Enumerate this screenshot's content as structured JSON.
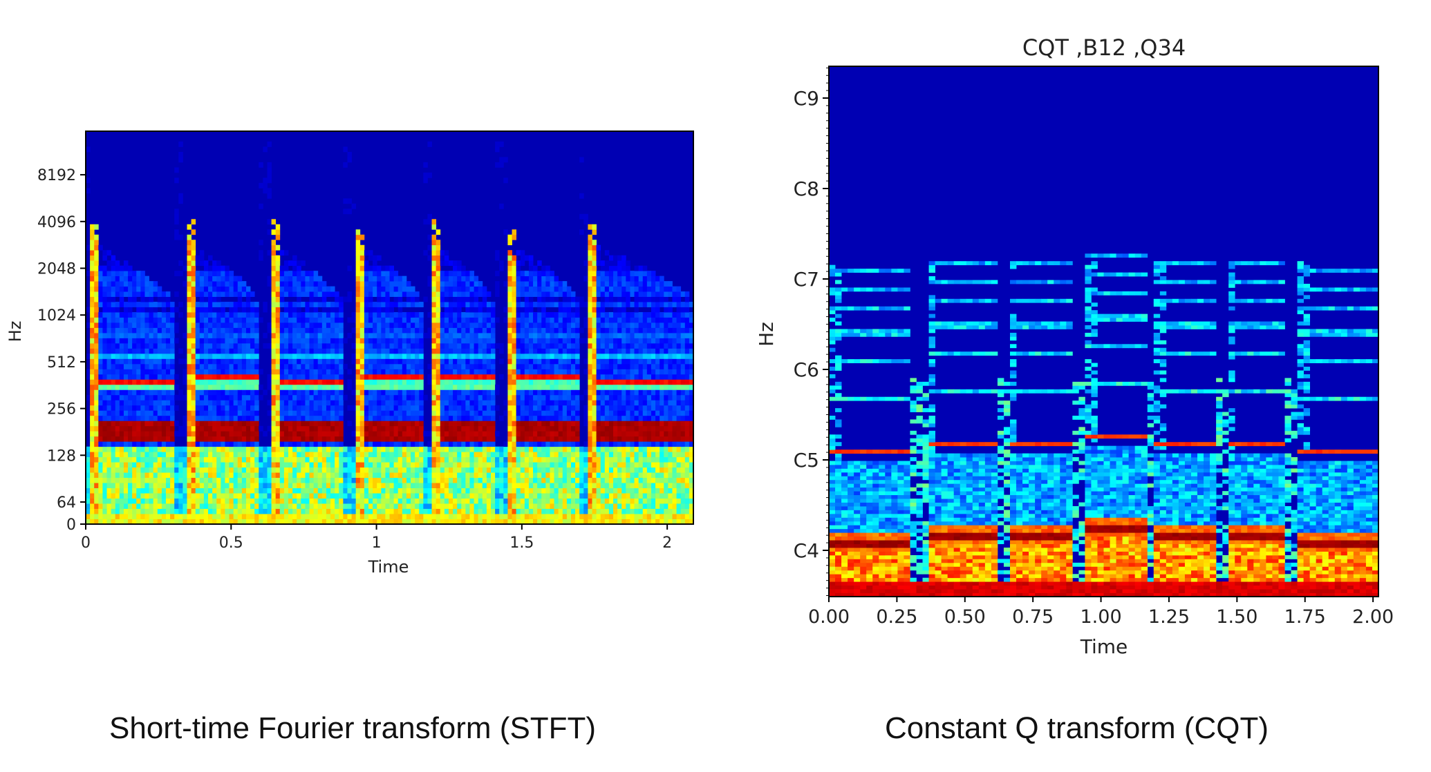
{
  "colors": {
    "colormap": "jet",
    "background": "#ffffff",
    "axis": "#000000"
  },
  "captions": {
    "stft": "Short-time Fourier transform (STFT)",
    "cqt": "Constant Q transform (CQT)"
  },
  "chart_data": [
    {
      "type": "heatmap",
      "title": "",
      "xlabel": "Time",
      "ylabel": "Hz",
      "xlim": [
        0,
        2.09
      ],
      "x_ticks": [
        0,
        0.5,
        1,
        1.5,
        2
      ],
      "x_tick_labels": [
        "0",
        "0.5",
        "1",
        "1.5",
        "2"
      ],
      "y_scale": "symlog",
      "y_ticks": [
        0,
        64,
        128,
        256,
        512,
        1024,
        2048,
        4096,
        8192
      ],
      "y_tick_labels": [
        "0",
        "64",
        "128",
        "256",
        "512",
        "1024",
        "2048",
        "4096",
        "8192"
      ],
      "grid": false,
      "legend": "none",
      "note_onsets": [
        0.02,
        0.35,
        0.64,
        0.93,
        1.19,
        1.45,
        1.73
      ],
      "note_offsets": [
        0.3,
        0.6,
        0.88,
        1.16,
        1.41,
        1.7,
        2.09
      ],
      "fundamental_hz": [
        185,
        185,
        185,
        185,
        185,
        185,
        185
      ],
      "harmonic_hz": [
        370,
        400,
        390,
        420,
        400,
        400,
        370
      ]
    },
    {
      "type": "heatmap",
      "title": "CQT ,B12 ,Q34",
      "xlabel": "Time",
      "ylabel": "Hz",
      "xlim": [
        0,
        2.02
      ],
      "x_ticks": [
        0,
        0.25,
        0.5,
        0.75,
        1.0,
        1.25,
        1.5,
        1.75,
        2.0
      ],
      "x_tick_labels": [
        "0.00",
        "0.25",
        "0.50",
        "0.75",
        "1.00",
        "1.25",
        "1.50",
        "1.75",
        "2.00"
      ],
      "y_scale": "log (note)",
      "y_ticks": [
        "C4",
        "C5",
        "C6",
        "C7",
        "C8",
        "C9"
      ],
      "y_tick_labels": [
        "C4",
        "C5",
        "C6",
        "C7",
        "C8",
        "C9"
      ],
      "grid": false,
      "legend": "none",
      "note_onsets": [
        0.0,
        0.36,
        0.66,
        0.94,
        1.2,
        1.46,
        1.72
      ],
      "note_offsets": [
        0.3,
        0.62,
        0.9,
        1.16,
        1.42,
        1.68,
        2.02
      ],
      "fundamental_note": [
        "C#4",
        "D4",
        "D4",
        "D#4",
        "D4",
        "D4",
        "C#4"
      ],
      "harmonic_note": [
        "C#5",
        "D5",
        "D5",
        "D#5",
        "D5",
        "D5",
        "C#5"
      ]
    }
  ]
}
